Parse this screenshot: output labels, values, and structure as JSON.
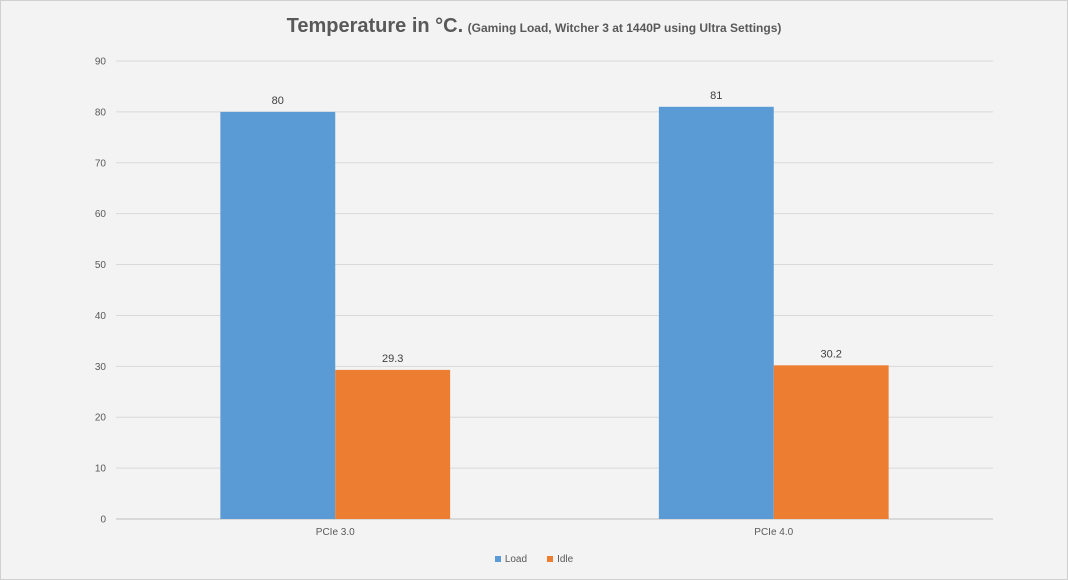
{
  "chart_data": {
    "type": "bar",
    "title": "Temperature in °C.",
    "subtitle": "(Gaming Load, Witcher 3 at 1440P using Ultra Settings)",
    "categories": [
      "PCIe 3.0",
      "PCIe 4.0"
    ],
    "series": [
      {
        "name": "Load",
        "values": [
          80,
          81
        ],
        "color": "#5b9bd5"
      },
      {
        "name": "Idle",
        "values": [
          29.3,
          30.2
        ],
        "color": "#ed7d31"
      }
    ],
    "ylim": [
      0,
      90
    ],
    "yticks": [
      0,
      10,
      20,
      30,
      40,
      50,
      60,
      70,
      80,
      90
    ],
    "grid": true,
    "legend": "bottom",
    "data_labels": true
  }
}
